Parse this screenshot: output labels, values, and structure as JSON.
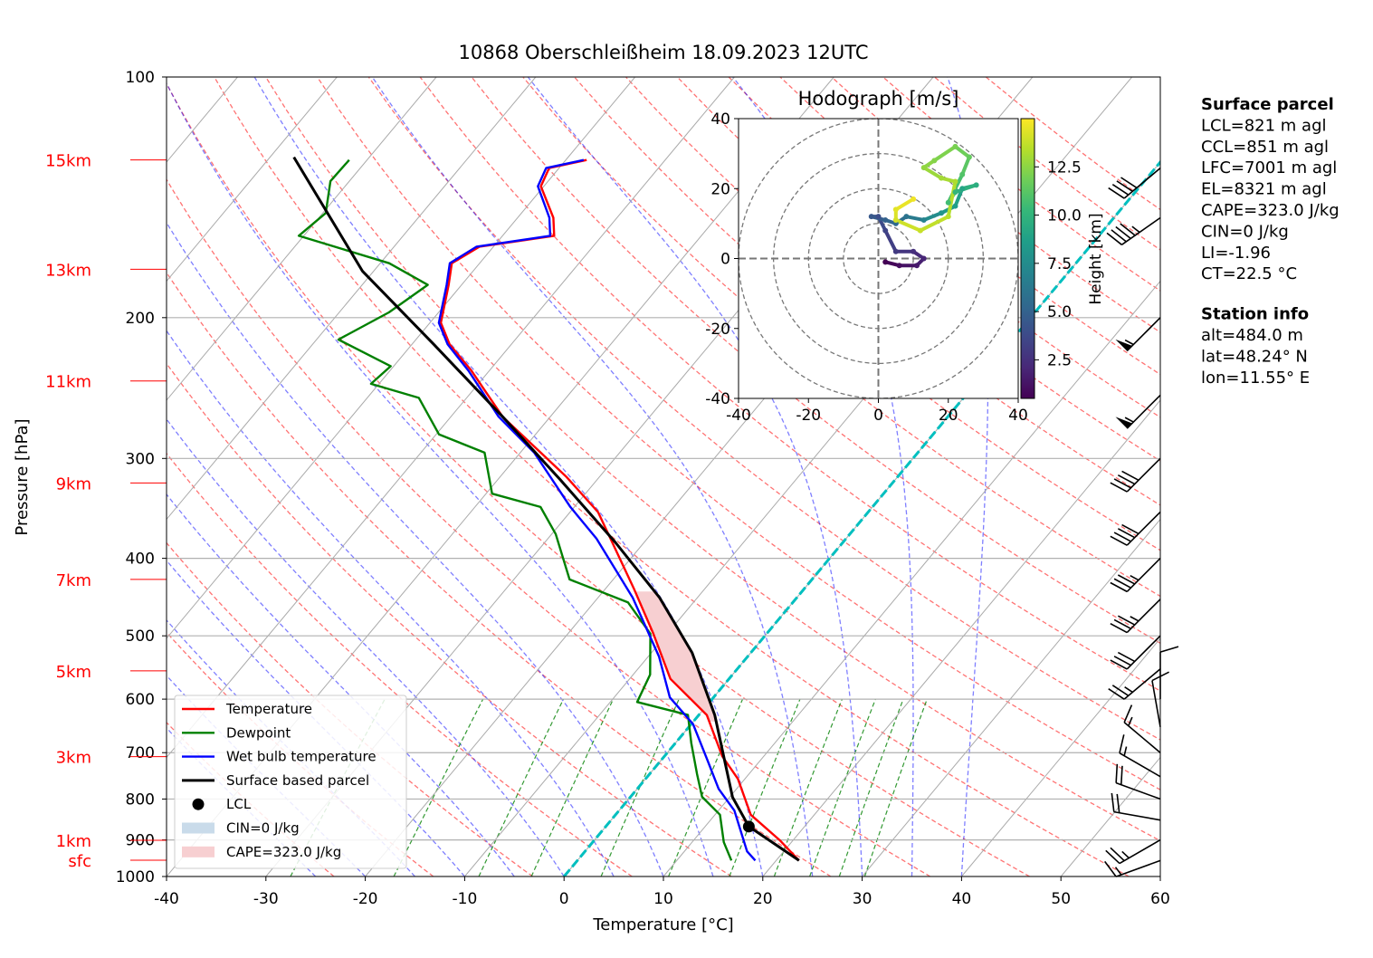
{
  "chart_data": [
    {
      "type": "skewt",
      "title": "10868 Oberschleißheim 18.09.2023 12UTC",
      "xlabel": "Temperature [°C]",
      "ylabel": "Pressure [hPa]",
      "xlim": [
        -40,
        60
      ],
      "xticks": [
        -40,
        -30,
        -20,
        -10,
        0,
        10,
        20,
        30,
        40,
        50,
        60
      ],
      "ylim": [
        1000,
        100
      ],
      "yticks": [
        100,
        200,
        300,
        400,
        500,
        600,
        700,
        800,
        900,
        1000
      ],
      "log_y": true,
      "grid": true,
      "legend": "lower left",
      "series": [
        {
          "name": "Temperature",
          "color": "#ff0000",
          "pressure": [
            955,
            900,
            837,
            755,
            707,
            628,
            566,
            497,
            436,
            350,
            316,
            266,
            233,
            216,
            203,
            182,
            171,
            163,
            158,
            150,
            137,
            130,
            127
          ],
          "temperature": [
            22.3,
            18.6,
            13.6,
            9.3,
            5.8,
            0.8,
            -5.9,
            -11.4,
            -17.2,
            -27.2,
            -33.4,
            -44.8,
            -51.8,
            -56.2,
            -58.9,
            -61.3,
            -62.8,
            -61.4,
            -54.8,
            -56.4,
            -60.3,
            -61.0,
            -57.9
          ]
        },
        {
          "name": "Dewpoint",
          "color": "#008000",
          "pressure": [
            955,
            906,
            837,
            795,
            745,
            681,
            628,
            605,
            559,
            497,
            454,
            425,
            373,
            345,
            332,
            295,
            280,
            252,
            242,
            230,
            213,
            197,
            182,
            171,
            158,
            148,
            135,
            127
          ],
          "temperature": [
            15.5,
            13.2,
            10.5,
            7.2,
            4.8,
            1.6,
            -1.1,
            -7.3,
            -8.3,
            -11.7,
            -16.6,
            -24.4,
            -29.6,
            -33.4,
            -39.4,
            -43.6,
            -49.7,
            -54.8,
            -60.8,
            -60.3,
            -67.8,
            -65.0,
            -63.4,
            -69.1,
            -80.5,
            -79.7,
            -81.9,
            -81.8
          ]
        },
        {
          "name": "Wet bulb temperature",
          "color": "#0000ff",
          "pressure": [
            955,
            930,
            827,
            777,
            716,
            645,
            597,
            531,
            448,
            378,
            345,
            295,
            266,
            233,
            216,
            203,
            182,
            171,
            163,
            158,
            150,
            137,
            130,
            127
          ],
          "temperature": [
            17.9,
            16.3,
            11.6,
            8.2,
            4.7,
            0.2,
            -4.4,
            -8.9,
            -16.5,
            -25.1,
            -30.4,
            -38.6,
            -45.2,
            -52.1,
            -56.4,
            -59.1,
            -61.5,
            -63.0,
            -61.7,
            -55.2,
            -56.8,
            -60.6,
            -61.3,
            -58.2
          ]
        },
        {
          "name": "Surface based parcel",
          "color": "#000000",
          "pressure": [
            955,
            866,
            796,
            628,
            525,
            448,
            382,
            319,
            266,
            216,
            175,
            126
          ],
          "temperature": [
            22.3,
            14.4,
            10.3,
            1.6,
            -5.9,
            -13.8,
            -22.9,
            -33.7,
            -44.8,
            -57.8,
            -71.1,
            -87.6
          ]
        }
      ],
      "lcl": {
        "label": "LCL",
        "pressure": 866,
        "temperature": 14.4,
        "color": "#000000"
      },
      "cin": {
        "label": "CIN=0 J/kg",
        "color": "#c9dbea"
      },
      "cape": {
        "label": "CAPE=323.0 J/kg",
        "color": "#f7cfd1"
      },
      "highlight_isotherm": {
        "value": 0,
        "color": "#00bfbf"
      },
      "height_markers": [
        {
          "label": "15km",
          "pressure": 127
        },
        {
          "label": "13km",
          "pressure": 174
        },
        {
          "label": "11km",
          "pressure": 240
        },
        {
          "label": "9km",
          "pressure": 322
        },
        {
          "label": "7km",
          "pressure": 425
        },
        {
          "label": "5km",
          "pressure": 553
        },
        {
          "label": "3km",
          "pressure": 708
        },
        {
          "label": "1km",
          "pressure": 901
        },
        {
          "label": "sfc",
          "pressure": 954
        }
      ],
      "winds": {
        "pressure": [
          955,
          900,
          850,
          800,
          750,
          700,
          650,
          600,
          550,
          500,
          450,
          400,
          350,
          300,
          250,
          200,
          150,
          130
        ],
        "direction": [
          250,
          240,
          280,
          290,
          300,
          310,
          350,
          0,
          230,
          225,
          225,
          225,
          225,
          225,
          225,
          225,
          235,
          230
        ],
        "speed": [
          15,
          25,
          20,
          20,
          15,
          15,
          10,
          10,
          25,
          30,
          35,
          35,
          40,
          40,
          55,
          55,
          45,
          40
        ]
      },
      "info_panel": [
        {
          "title": "Surface parcel",
          "lines": [
            "LCL=821 m agl",
            "CCL=851 m agl",
            "LFC=7001 m agl",
            "EL=8321 m agl",
            "CAPE=323.0 J/kg",
            "CIN=0 J/kg",
            "LI=-1.96",
            "CT=22.5 °C"
          ]
        },
        {
          "title": "Station info",
          "lines": [
            "alt=484.0 m",
            "lat=48.24° N",
            "lon=11.55° E"
          ]
        }
      ]
    },
    {
      "type": "hodograph",
      "title": "Hodograph [m/s]",
      "xlim": [
        -40,
        40
      ],
      "ylim": [
        -40,
        40
      ],
      "xticks": [
        -40,
        -20,
        0,
        20,
        40
      ],
      "yticks": [
        -40,
        -20,
        0,
        20,
        40
      ],
      "rings": [
        10,
        20,
        30,
        40
      ],
      "u": [
        2,
        6,
        11,
        13,
        10,
        5,
        2,
        0,
        -2,
        2,
        5,
        8,
        13,
        18,
        22,
        24,
        28,
        22,
        20,
        24,
        26,
        22,
        16,
        13,
        18,
        22,
        20,
        12,
        5,
        5,
        10
      ],
      "v": [
        -1,
        -2,
        -2,
        0,
        2,
        2,
        8,
        12,
        12,
        11,
        10,
        12,
        11,
        13,
        15,
        20,
        21,
        19,
        16,
        24,
        29,
        32,
        28,
        26,
        23,
        22,
        12,
        8,
        11,
        14,
        17
      ],
      "height": [
        0.5,
        1,
        1.5,
        2,
        2.5,
        3,
        3.5,
        4,
        4.5,
        5,
        5.5,
        6,
        7,
        8,
        8.5,
        9,
        9.5,
        10,
        10.5,
        11,
        11.5,
        12,
        12.3,
        12.6,
        13,
        13.2,
        13.5,
        13.8,
        14.1,
        14.4,
        14.7
      ],
      "colorbar_label": "Height [km]",
      "clim": [
        0.5,
        15
      ],
      "cticks": [
        {
          "value": 2.5,
          "label": "2.5"
        },
        {
          "value": 5,
          "label": "5.0"
        },
        {
          "value": 7.5,
          "label": "7.5"
        },
        {
          "value": 10,
          "label": "10.0"
        },
        {
          "value": 12.5,
          "label": "12.5"
        }
      ]
    }
  ]
}
